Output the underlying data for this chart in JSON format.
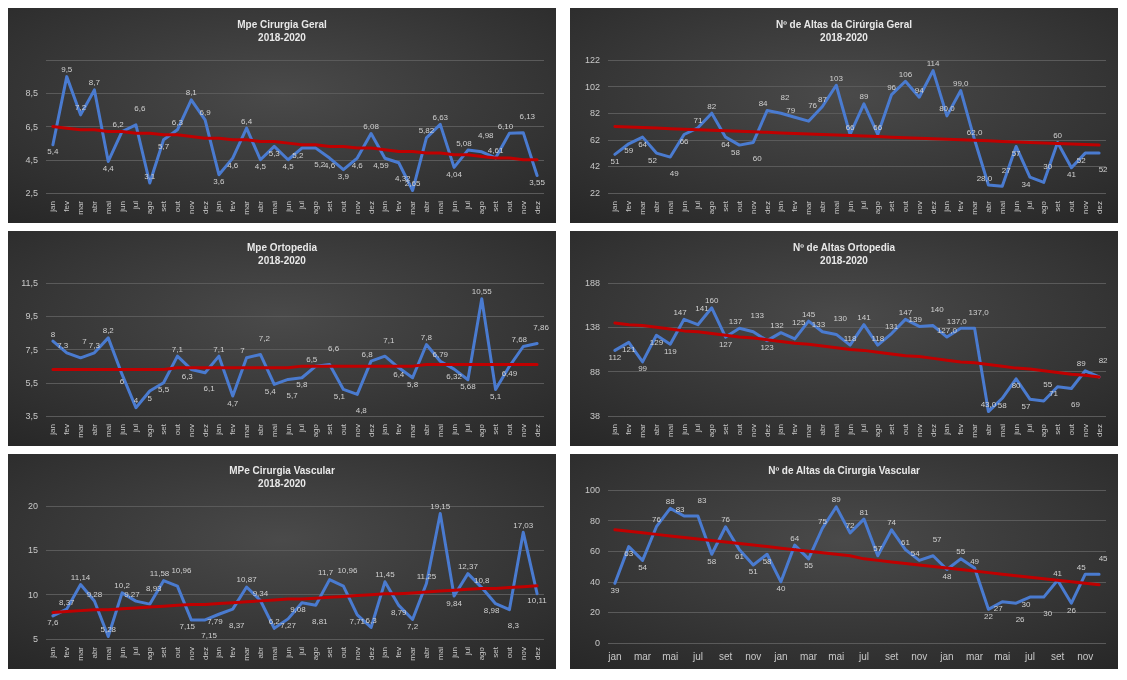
{
  "chart_data": [
    {
      "type": "line",
      "title": "Mpe Cirurgia Geral",
      "subtitle": "2018-2020",
      "categories": [
        "jan",
        "fev",
        "mar",
        "abr",
        "mai",
        "jun",
        "jul",
        "ago",
        "set",
        "out",
        "nov",
        "dez",
        "jan",
        "fev",
        "mar",
        "abr",
        "mai",
        "jun",
        "jul",
        "ago",
        "set",
        "out",
        "nov",
        "dez",
        "jan",
        "fev",
        "mar",
        "abr",
        "mai",
        "jun",
        "jul",
        "ago",
        "set",
        "out",
        "nov",
        "dez"
      ],
      "ylim": [
        2.5,
        10.5
      ],
      "yticks": [
        {
          "value": 2.5,
          "label": "2,5"
        },
        {
          "value": 4.5,
          "label": "4,5"
        },
        {
          "value": 6.5,
          "label": "6,5"
        },
        {
          "value": 8.5,
          "label": "8,5"
        },
        {
          "value": 10.5,
          "label": null
        }
      ],
      "grid": "y",
      "series": [
        {
          "color": "#4a7bd0",
          "values": [
            5.4,
            9.5,
            7.2,
            8.7,
            4.4,
            6.2,
            6.6,
            3.1,
            5.7,
            6.3,
            8.1,
            6.9,
            3.6,
            4.6,
            6.4,
            4.5,
            5.3,
            4.5,
            5.2,
            5.2,
            4.6,
            3.9,
            4.6,
            6.08,
            4.59,
            4.32,
            2.65,
            5.82,
            6.63,
            4.04,
            5.08,
            4.98,
            4.61,
            6.1,
            6.13,
            3.55
          ],
          "value_labels": [
            "5,4",
            "9,5",
            "7,2",
            "8,7",
            "4,4",
            "6,2",
            "6,6",
            "3,1",
            "5,7",
            "6,3",
            "8,1",
            "6,9",
            "3,6",
            "4,6",
            "6,4",
            "4,5",
            "5,3",
            "4,5",
            "5,2",
            "5,2",
            "4,6",
            "3,9",
            "4,6",
            "6,08",
            "4,59",
            "4,32",
            "2,65",
            "5,82",
            "6,63",
            "4,04",
            "5,08",
            "4,98",
            "4,61",
            "6,10",
            "6,13",
            "3,55"
          ]
        },
        {
          "type": "line",
          "color": "#c00000",
          "values": [
            6.5,
            6.4,
            6.3,
            6.3,
            6.2,
            6.2,
            6.1,
            6.1,
            6.0,
            6.0,
            5.9,
            5.8,
            5.8,
            5.7,
            5.7,
            5.6,
            5.6,
            5.5,
            5.4,
            5.4,
            5.3,
            5.3,
            5.2,
            5.2,
            5.1,
            5.0,
            5.0,
            4.9,
            4.9,
            4.8,
            4.8,
            4.7,
            4.6,
            4.6,
            4.5,
            4.5
          ]
        }
      ]
    },
    {
      "type": "line",
      "title": "Nº de Altas da Cirúrgia Geral",
      "subtitle": "2018-2020",
      "categories": [
        "jan",
        "fev",
        "mar",
        "abr",
        "mai",
        "jun",
        "jul",
        "ago",
        "set",
        "out",
        "nov",
        "dez",
        "jan",
        "fev",
        "mar",
        "abr",
        "mai",
        "jun",
        "jul",
        "ago",
        "set",
        "out",
        "nov",
        "dez",
        "jan",
        "fev",
        "mar",
        "abr",
        "mai",
        "jun",
        "jul",
        "ago",
        "set",
        "out",
        "nov",
        "dez"
      ],
      "ylim": [
        22,
        122
      ],
      "yticks": [
        22,
        42,
        62,
        82,
        102,
        122
      ],
      "grid": "y",
      "series": [
        {
          "color": "#4a7bd0",
          "values": [
            51,
            59,
            64,
            52,
            49,
            66,
            71,
            82,
            64,
            58,
            60,
            84,
            82,
            79,
            76,
            87,
            103,
            66,
            89,
            66,
            96,
            106,
            94,
            114,
            80,
            99,
            62,
            28,
            27,
            57,
            34,
            30,
            60,
            41,
            52,
            52
          ],
          "value_labels": [
            "51",
            "59",
            "64",
            "52",
            "49",
            "66",
            "71",
            "82",
            "64",
            "58",
            "60",
            "84",
            "82",
            "79",
            "76",
            "87",
            "103",
            "66",
            "89",
            "66",
            "96",
            "106",
            "94",
            "114",
            "80,0",
            "99,0",
            "62,0",
            "28,0",
            "27",
            "57",
            "34",
            "30",
            "60",
            "41",
            "52",
            "52"
          ]
        },
        {
          "type": "line",
          "color": "#c00000",
          "values": [
            72,
            71.6,
            71.2,
            70.8,
            70.4,
            70,
            69.6,
            69.2,
            68.8,
            68.4,
            68,
            67.6,
            67.2,
            66.8,
            66.4,
            66,
            65.6,
            65.2,
            64.8,
            64.4,
            64,
            63.6,
            63.2,
            62.8,
            62.4,
            62,
            61.6,
            61.2,
            60.8,
            60.4,
            60,
            59.6,
            59.2,
            58.8,
            58.4,
            58
          ]
        }
      ]
    },
    {
      "type": "line",
      "title": "Mpe Ortopedia",
      "subtitle": "2018-2020",
      "categories": [
        "jan",
        "fev",
        "mar",
        "abr",
        "mai",
        "jun",
        "jul",
        "ago",
        "set",
        "out",
        "nov",
        "dez",
        "jan",
        "fev",
        "mar",
        "abr",
        "mai",
        "jun",
        "jul",
        "ago",
        "set",
        "out",
        "nov",
        "dez",
        "jan",
        "fev",
        "mar",
        "abr",
        "mai",
        "jun",
        "jul",
        "ago",
        "set",
        "out",
        "nov",
        "dez"
      ],
      "ylim": [
        3.5,
        11.5
      ],
      "yticks": [
        {
          "value": 3.5,
          "label": "3,5"
        },
        {
          "value": 5.5,
          "label": "5,5"
        },
        {
          "value": 7.5,
          "label": "7,5"
        },
        {
          "value": 9.5,
          "label": "9,5"
        },
        {
          "value": 11.5,
          "label": "11,5"
        }
      ],
      "grid": "y",
      "series": [
        {
          "color": "#4a7bd0",
          "values": [
            8,
            7.3,
            7,
            7.3,
            8.2,
            6,
            4,
            5,
            5.5,
            7.1,
            6.3,
            6.1,
            7.1,
            4.7,
            7,
            7.2,
            5.4,
            5.7,
            5.8,
            6.5,
            6.6,
            5.1,
            4.8,
            6.8,
            7.1,
            6.4,
            5.8,
            7.8,
            6.79,
            6.32,
            5.68,
            10.55,
            5.1,
            6.49,
            7.68,
            7.86
          ],
          "value_labels": [
            "8",
            "7,3",
            "7",
            "7,3",
            "8,2",
            "6",
            "4",
            "5",
            "5,5",
            "7,1",
            "6,3",
            "6,1",
            "7,1",
            "4,7",
            "7",
            "7,2",
            "5,4",
            "5,7",
            "5,8",
            "6,5",
            "6,6",
            "5,1",
            "4,8",
            "6,8",
            "7,1",
            "6,4",
            "5,8",
            "7,8",
            "6,79",
            "6,32",
            "5,68",
            "10,55",
            "5,1",
            "6,49",
            "7,68",
            "7,86"
          ]
        },
        {
          "type": "line",
          "color": "#c00000",
          "values": [
            6.3,
            6.3,
            6.3,
            6.3,
            6.3,
            6.3,
            6.3,
            6.3,
            6.3,
            6.4,
            6.4,
            6.4,
            6.4,
            6.4,
            6.4,
            6.4,
            6.4,
            6.4,
            6.5,
            6.5,
            6.5,
            6.5,
            6.5,
            6.5,
            6.5,
            6.5,
            6.5,
            6.6,
            6.6,
            6.6,
            6.6,
            6.6,
            6.6,
            6.6,
            6.6,
            6.6
          ]
        }
      ]
    },
    {
      "type": "line",
      "title": "Nº de Altas Ortopedia",
      "subtitle": "2018-2020",
      "categories": [
        "jan",
        "fev",
        "mar",
        "abr",
        "mai",
        "jun",
        "jul",
        "ago",
        "set",
        "out",
        "nov",
        "dez",
        "jan",
        "fev",
        "mar",
        "abr",
        "mai",
        "jun",
        "jul",
        "ago",
        "set",
        "out",
        "nov",
        "dez",
        "jan",
        "fev",
        "mar",
        "abr",
        "mai",
        "jun",
        "jul",
        "ago",
        "set",
        "out",
        "nov",
        "dez"
      ],
      "ylim": [
        38,
        188
      ],
      "yticks": [
        38,
        88,
        138,
        188
      ],
      "grid": "y",
      "series": [
        {
          "color": "#4a7bd0",
          "values": [
            112,
            121,
            99,
            129,
            119,
            147,
            141,
            160,
            127,
            137,
            133,
            123,
            132,
            125,
            145,
            133,
            130,
            118,
            141,
            118,
            131,
            147,
            139,
            140,
            127,
            137,
            137,
            43,
            58,
            80,
            57,
            55,
            71,
            69,
            89,
            82
          ],
          "value_labels": [
            "112",
            "121",
            "99",
            "129",
            "119",
            "147",
            "141",
            "160",
            "127",
            "137",
            "133",
            "123",
            "132",
            "125",
            "145",
            "133",
            "130",
            "118",
            "141",
            "118",
            "131",
            "147",
            "139",
            "140",
            "127,0",
            "137,0",
            "137,0",
            "43,0",
            "58",
            "80",
            "57",
            "55",
            "71",
            "69",
            "89",
            "82"
          ]
        },
        {
          "type": "line",
          "color": "#c00000",
          "values": [
            143,
            141,
            140,
            138,
            136,
            134,
            133,
            131,
            129,
            127,
            126,
            124,
            122,
            120,
            119,
            117,
            115,
            113,
            112,
            110,
            108,
            106,
            105,
            103,
            101,
            99,
            98,
            96,
            94,
            92,
            91,
            89,
            87,
            85,
            84,
            82
          ]
        }
      ]
    },
    {
      "type": "line",
      "title": "MPe Cirurgia Vascular",
      "subtitle": "2018-2020",
      "categories": [
        "jan",
        "fev",
        "mar",
        "abr",
        "mai",
        "jun",
        "jul",
        "ago",
        "set",
        "out",
        "nov",
        "dez",
        "jan",
        "fev",
        "mar",
        "abr",
        "mai",
        "jun",
        "jul",
        "ago",
        "set",
        "out",
        "nov",
        "dez",
        "jan",
        "fev",
        "mar",
        "abr",
        "mai",
        "jun",
        "jul",
        "ago",
        "set",
        "out",
        "nov",
        "dez"
      ],
      "ylim": [
        5,
        20
      ],
      "yticks": [
        5,
        10,
        15,
        20
      ],
      "grid": "y",
      "series": [
        {
          "color": "#4a7bd0",
          "values": [
            7.6,
            8.37,
            11.14,
            9.28,
            5.28,
            10.2,
            9.27,
            8.93,
            11.58,
            10.96,
            7.15,
            7.15,
            7.79,
            8.37,
            10.87,
            9.34,
            6.2,
            7.27,
            9.08,
            8.81,
            11.7,
            10.96,
            7.71,
            6.3,
            11.45,
            8.79,
            7.2,
            11.25,
            19.15,
            9.84,
            12.37,
            10.8,
            8.98,
            8.3,
            17.03,
            10.11
          ],
          "value_labels": [
            "7,6",
            "8,37",
            "11,14",
            "9,28",
            "5,28",
            "10,2",
            "9,27",
            "8,93",
            "11,58",
            "10,96",
            "7,15",
            "7,15",
            "7,79",
            "8,37",
            "10,87",
            "9,34",
            "6,2",
            "7,27",
            "9,08",
            "8,81",
            "11,7",
            "10,96",
            "7,71",
            "6,3",
            "11,45",
            "8,79",
            "7,2",
            "11,25",
            "19,15",
            "9,84",
            "12,37",
            "10,8",
            "8,98",
            "8,3",
            "17,03",
            "10,11"
          ]
        },
        {
          "type": "line",
          "color": "#c00000",
          "values": [
            8.0,
            8.1,
            8.2,
            8.3,
            8.3,
            8.4,
            8.5,
            8.6,
            8.7,
            8.8,
            8.9,
            8.9,
            9.0,
            9.1,
            9.2,
            9.3,
            9.4,
            9.5,
            9.5,
            9.6,
            9.7,
            9.8,
            9.9,
            10.0,
            10.1,
            10.1,
            10.2,
            10.3,
            10.4,
            10.5,
            10.6,
            10.7,
            10.7,
            10.8,
            10.9,
            11.0
          ]
        }
      ]
    },
    {
      "type": "line",
      "title": "Nº de Altas da Cirurgia Vascular",
      "categories": [
        "jan",
        null,
        "mar",
        null,
        "mai",
        null,
        "jul",
        null,
        "set",
        null,
        "nov",
        null,
        "jan",
        null,
        "mar",
        null,
        "mai",
        null,
        "jul",
        null,
        "set",
        null,
        "nov",
        null,
        "jan",
        null,
        "mar",
        null,
        "mai",
        null,
        "jul",
        null,
        "set",
        null,
        "nov",
        null
      ],
      "ylim": [
        0,
        100
      ],
      "yticks": [
        0,
        20,
        40,
        60,
        80,
        100
      ],
      "grid": "y",
      "series": [
        {
          "color": "#4a7bd0",
          "values": [
            39,
            63,
            54,
            76,
            88,
            83,
            83,
            58,
            76,
            61,
            51,
            58,
            40,
            64,
            55,
            75,
            89,
            72,
            81,
            57,
            74,
            61,
            54,
            57,
            48,
            55,
            49,
            22,
            27,
            26,
            30,
            30,
            41,
            26,
            45,
            45
          ],
          "value_labels": [
            "39",
            "63",
            "54",
            "76",
            "88",
            "83",
            "83",
            "58",
            "76",
            "61",
            "51",
            "58",
            "40",
            "64",
            "55",
            "75",
            "89",
            "72",
            "81",
            "57",
            "74",
            "61",
            "54",
            "57",
            "48",
            "55",
            "49",
            "22",
            "27",
            "26",
            "30",
            "30",
            "41",
            "26",
            "45",
            "45"
          ]
        },
        {
          "type": "line",
          "color": "#c00000",
          "values": [
            74,
            73,
            72,
            71,
            70,
            69,
            68,
            67,
            66,
            65,
            64,
            63,
            62,
            61,
            60,
            59,
            58,
            57,
            55,
            54,
            53,
            52,
            51,
            50,
            49,
            48,
            47,
            46,
            45,
            44,
            43,
            42,
            41,
            40,
            39,
            38
          ]
        }
      ]
    }
  ]
}
